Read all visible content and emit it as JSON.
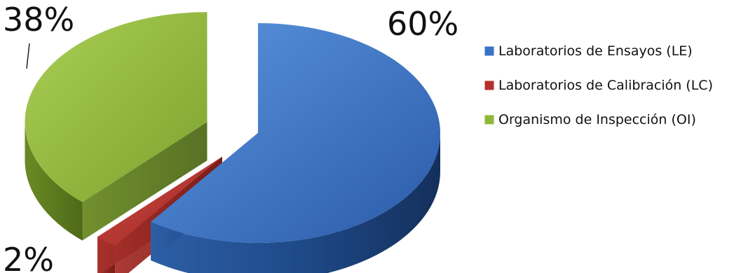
{
  "chart_data": {
    "type": "pie",
    "title": "",
    "categories": [
      "Laboratorios de Ensayos (LE)",
      "Laboratorios de Calibración (LC)",
      "Organismo de Inspección (OI)"
    ],
    "values": [
      60,
      2,
      38
    ],
    "data_labels": [
      "60%",
      "2%",
      "38%"
    ],
    "colors": [
      "#3a72c4",
      "#b3302c",
      "#8fb83a"
    ],
    "legend_position": "right",
    "style": "3d-exploded"
  }
}
